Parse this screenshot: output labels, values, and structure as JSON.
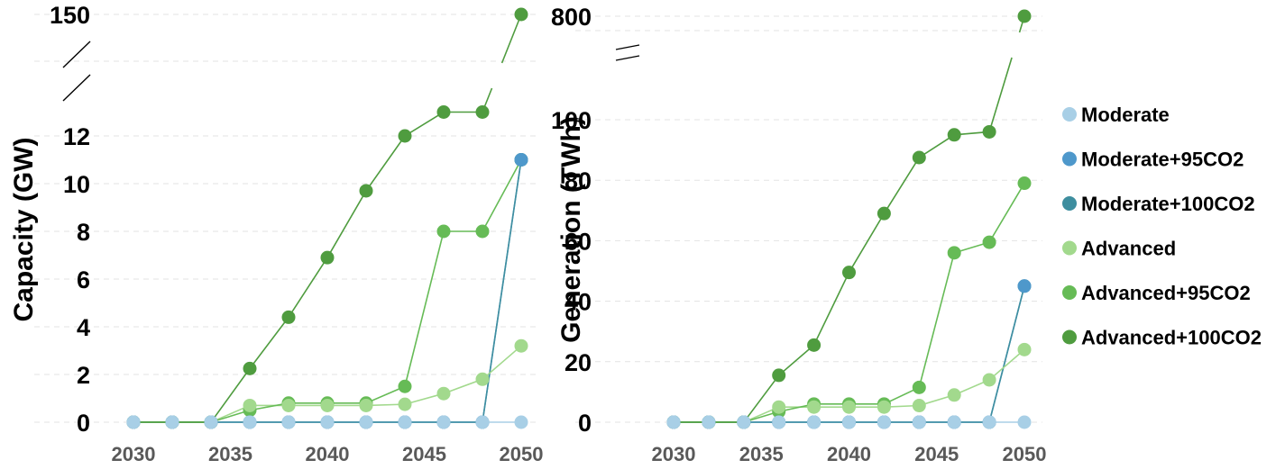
{
  "colors": {
    "Moderate": "#a8cfe6",
    "Moderate+95CO2": "#4e98cb",
    "Moderate+100CO2": "#3e8e9f",
    "Advanced": "#a2d98d",
    "Advanced+95CO2": "#66bb56",
    "Advanced+100CO2": "#4f9c3f"
  },
  "chart_data": [
    {
      "type": "line",
      "ylabel": "Capacity (GW)",
      "x": [
        2030,
        2032,
        2034,
        2036,
        2038,
        2040,
        2042,
        2044,
        2046,
        2048,
        2050
      ],
      "xticks": [
        "2030",
        "2035",
        "2040",
        "2045",
        "2050"
      ],
      "yticks": [
        "0",
        "2",
        "4",
        "6",
        "8",
        "10",
        "12",
        "150"
      ],
      "ylim": [
        0,
        150
      ],
      "axis_break": [
        13,
        150
      ],
      "grid": true,
      "series": [
        {
          "name": "Moderate",
          "values": [
            0,
            0,
            0,
            0,
            0,
            0,
            0,
            0,
            0,
            0,
            0
          ]
        },
        {
          "name": "Moderate+95CO2",
          "values": [
            0,
            0,
            0,
            0,
            0,
            0,
            0,
            0,
            0,
            0,
            11
          ]
        },
        {
          "name": "Moderate+100CO2",
          "values": [
            0,
            0,
            0,
            0,
            0,
            0,
            0,
            0,
            0,
            0,
            11
          ]
        },
        {
          "name": "Advanced",
          "values": [
            0,
            0,
            0,
            0.7,
            0.7,
            0.7,
            0.7,
            0.75,
            1.2,
            1.8,
            3.2
          ]
        },
        {
          "name": "Advanced+95CO2",
          "values": [
            0,
            0,
            0,
            0.5,
            0.8,
            0.8,
            0.8,
            1.5,
            8,
            8,
            11
          ]
        },
        {
          "name": "Advanced+100CO2",
          "values": [
            0,
            0,
            0,
            2.25,
            4.4,
            6.9,
            9.7,
            12,
            13,
            13,
            150
          ]
        }
      ]
    },
    {
      "type": "line",
      "ylabel": "Generation (TWh)",
      "x": [
        2030,
        2032,
        2034,
        2036,
        2038,
        2040,
        2042,
        2044,
        2046,
        2048,
        2050
      ],
      "xticks": [
        "2030",
        "2035",
        "2040",
        "2045",
        "2050"
      ],
      "yticks": [
        "0",
        "20",
        "40",
        "60",
        "80",
        "100",
        "800"
      ],
      "ylim": [
        0,
        800
      ],
      "axis_break": [
        115,
        800
      ],
      "grid": true,
      "series": [
        {
          "name": "Moderate",
          "values": [
            0,
            0,
            0,
            0,
            0,
            0,
            0,
            0,
            0,
            0,
            0
          ]
        },
        {
          "name": "Moderate+95CO2",
          "values": [
            0,
            0,
            0,
            0,
            0,
            0,
            0,
            0,
            0,
            0,
            45
          ]
        },
        {
          "name": "Moderate+100CO2",
          "values": [
            0,
            0,
            0,
            0,
            0,
            0,
            0,
            0,
            0,
            0,
            45
          ]
        },
        {
          "name": "Advanced",
          "values": [
            0,
            0,
            0,
            5,
            5,
            5,
            5,
            5.5,
            9,
            14,
            24
          ]
        },
        {
          "name": "Advanced+95CO2",
          "values": [
            0,
            0,
            0,
            3.5,
            6,
            6,
            6,
            11.5,
            56,
            59.5,
            79
          ]
        },
        {
          "name": "Advanced+100CO2",
          "values": [
            0,
            0,
            0,
            15.5,
            25.5,
            49.5,
            69,
            87.5,
            95,
            96,
            800
          ]
        }
      ]
    }
  ],
  "legend": {
    "position": "right",
    "items": [
      "Moderate",
      "Moderate+95CO2",
      "Moderate+100CO2",
      "Advanced",
      "Advanced+95CO2",
      "Advanced+100CO2"
    ]
  }
}
